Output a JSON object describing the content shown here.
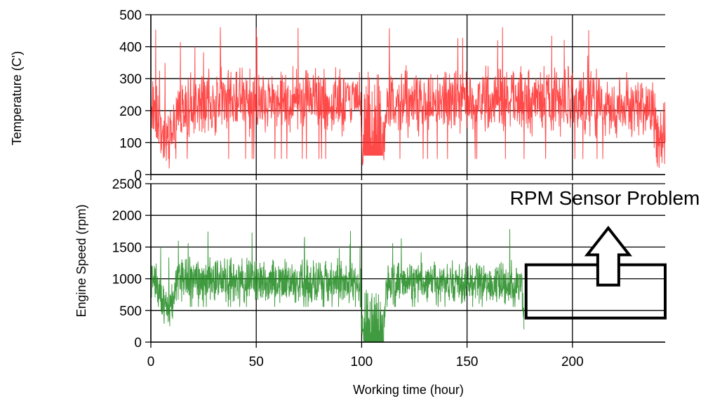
{
  "chart_data": [
    {
      "type": "line",
      "ylabel": "Temperature (C')",
      "xlim": [
        0,
        244
      ],
      "ylim": [
        0,
        500
      ],
      "yticks": [
        0,
        100,
        200,
        300,
        400,
        500
      ],
      "xticks": [
        0,
        50,
        100,
        150,
        200
      ],
      "grid": true,
      "series": [
        {
          "color": "#ff2a2a",
          "baseline": [
            [
              0,
              220
            ],
            [
              3,
              200
            ],
            [
              6,
              120
            ],
            [
              10,
              105
            ],
            [
              13,
              210
            ],
            [
              30,
              230
            ],
            [
              60,
              240
            ],
            [
              99,
              230
            ],
            [
              101,
              60
            ],
            [
              110,
              60
            ],
            [
              112,
              230
            ],
            [
              150,
              235
            ],
            [
              200,
              230
            ],
            [
              238,
              200
            ],
            [
              240,
              110
            ],
            [
              244,
              110
            ]
          ],
          "amplitude": 120,
          "low_spike": 50
        }
      ]
    },
    {
      "type": "line",
      "xlabel": "Working time (hour)",
      "ylabel": "Engine Speed (rpm)",
      "xlim": [
        0,
        244
      ],
      "ylim": [
        0,
        2500
      ],
      "yticks": [
        0,
        500,
        1000,
        1500,
        2000,
        2500
      ],
      "xticks": [
        0,
        50,
        100,
        150,
        200
      ],
      "grid": true,
      "series": [
        {
          "color": "#1f8a1f",
          "baseline": [
            [
              0,
              1000
            ],
            [
              3,
              900
            ],
            [
              6,
              560
            ],
            [
              10,
              560
            ],
            [
              12,
              1000
            ],
            [
              60,
              950
            ],
            [
              99,
              950
            ],
            [
              101,
              0
            ],
            [
              110,
              0
            ],
            [
              112,
              950
            ],
            [
              176,
              950
            ],
            [
              177,
              560
            ]
          ],
          "amplitude": 380,
          "low_spike": 560
        }
      ],
      "annotation": {
        "text": "RPM Sensor Problem",
        "box_x": [
          178,
          244
        ],
        "box_y": [
          380,
          1220
        ],
        "arrow_x": 217,
        "arrow_y": [
          900,
          1800
        ]
      }
    }
  ]
}
